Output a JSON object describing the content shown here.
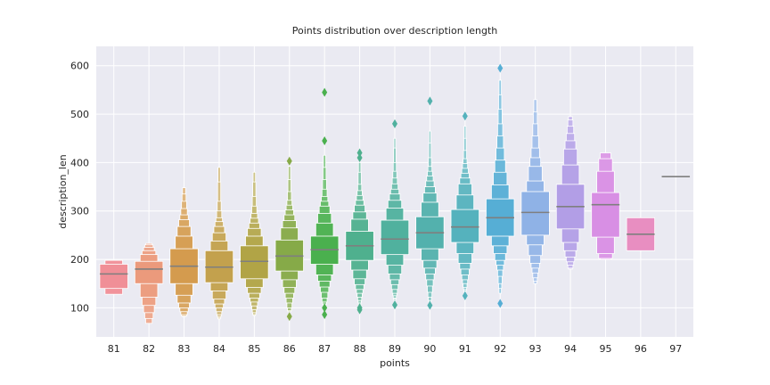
{
  "chart_data": {
    "type": "boxenplot",
    "title": "Points distribution over description length",
    "xlabel": "points",
    "ylabel": "description_len",
    "ylim": [
      40,
      640
    ],
    "yticks": [
      100,
      200,
      300,
      400,
      500,
      600
    ],
    "grid": true,
    "categories": [
      "81",
      "82",
      "83",
      "84",
      "85",
      "86",
      "87",
      "88",
      "89",
      "90",
      "91",
      "92",
      "93",
      "94",
      "95",
      "96",
      "97"
    ],
    "colors": [
      "#f08f97",
      "#eb9a7c",
      "#d49b4e",
      "#c3a14d",
      "#b1a446",
      "#86aa48",
      "#4ab04e",
      "#4fb08e",
      "#50b19e",
      "#53b1ad",
      "#55b2bd",
      "#56aed5",
      "#8fb2e6",
      "#b29ee6",
      "#d88fe4",
      "#e88ec1",
      "#ee91a8"
    ],
    "median_color": "#7f7f7f",
    "series": [
      {
        "category": "81",
        "median": 170,
        "boxes": [
          [
            140,
            190
          ],
          [
            128,
            198
          ]
        ],
        "outliers": []
      },
      {
        "category": "82",
        "median": 180,
        "boxes": [
          [
            150,
            196
          ],
          [
            122,
            210
          ],
          [
            105,
            218
          ],
          [
            90,
            225
          ],
          [
            78,
            230
          ],
          [
            68,
            233
          ]
        ],
        "outliers": []
      },
      {
        "category": "83",
        "median": 186,
        "boxes": [
          [
            150,
            222
          ],
          [
            126,
            248
          ],
          [
            110,
            268
          ],
          [
            100,
            282
          ],
          [
            92,
            292
          ],
          [
            86,
            305
          ],
          [
            83,
            320
          ],
          [
            82,
            335
          ],
          [
            82,
            348
          ]
        ],
        "outliers": []
      },
      {
        "category": "84",
        "median": 184,
        "boxes": [
          [
            152,
            218
          ],
          [
            135,
            238
          ],
          [
            118,
            255
          ],
          [
            108,
            268
          ],
          [
            100,
            278
          ],
          [
            92,
            286
          ],
          [
            86,
            300
          ],
          [
            82,
            320
          ],
          [
            79,
            360
          ],
          [
            77,
            390
          ]
        ],
        "outliers": []
      },
      {
        "category": "85",
        "median": 196,
        "boxes": [
          [
            160,
            228
          ],
          [
            142,
            248
          ],
          [
            130,
            264
          ],
          [
            120,
            275
          ],
          [
            112,
            285
          ],
          [
            104,
            295
          ],
          [
            96,
            310
          ],
          [
            90,
            330
          ],
          [
            86,
            360
          ],
          [
            84,
            380
          ]
        ],
        "outliers": []
      },
      {
        "category": "86",
        "median": 207,
        "boxes": [
          [
            176,
            240
          ],
          [
            158,
            265
          ],
          [
            142,
            280
          ],
          [
            130,
            292
          ],
          [
            120,
            302
          ],
          [
            110,
            312
          ],
          [
            100,
            322
          ],
          [
            94,
            340
          ],
          [
            92,
            365
          ],
          [
            92,
            392
          ]
        ],
        "outliers": [
          82,
          403
        ]
      },
      {
        "category": "87",
        "median": 220,
        "boxes": [
          [
            190,
            248
          ],
          [
            168,
            275
          ],
          [
            155,
            295
          ],
          [
            143,
            310
          ],
          [
            132,
            320
          ],
          [
            120,
            330
          ],
          [
            112,
            345
          ],
          [
            108,
            365
          ],
          [
            106,
            390
          ],
          [
            104,
            415
          ]
        ],
        "outliers": [
          86,
          100,
          445,
          545
        ]
      },
      {
        "category": "88",
        "median": 228,
        "boxes": [
          [
            198,
            258
          ],
          [
            178,
            283
          ],
          [
            160,
            298
          ],
          [
            148,
            312
          ],
          [
            138,
            322
          ],
          [
            130,
            332
          ],
          [
            122,
            342
          ],
          [
            115,
            355
          ],
          [
            110,
            380
          ],
          [
            105,
            400
          ]
        ],
        "outliers": [
          96,
          100,
          410,
          420
        ]
      },
      {
        "category": "89",
        "median": 242,
        "boxes": [
          [
            210,
            281
          ],
          [
            188,
            306
          ],
          [
            170,
            322
          ],
          [
            158,
            335
          ],
          [
            148,
            345
          ],
          [
            138,
            356
          ],
          [
            130,
            368
          ],
          [
            125,
            382
          ],
          [
            120,
            400
          ],
          [
            118,
            430
          ],
          [
            115,
            450
          ]
        ],
        "outliers": [
          106,
          480
        ]
      },
      {
        "category": "90",
        "median": 255,
        "boxes": [
          [
            222,
            288
          ],
          [
            198,
            318
          ],
          [
            182,
            337
          ],
          [
            170,
            350
          ],
          [
            158,
            362
          ],
          [
            145,
            372
          ],
          [
            132,
            382
          ],
          [
            122,
            392
          ],
          [
            115,
            410
          ],
          [
            112,
            440
          ],
          [
            110,
            465
          ]
        ],
        "outliers": [
          105,
          527
        ]
      },
      {
        "category": "91",
        "median": 267,
        "boxes": [
          [
            235,
            303
          ],
          [
            212,
            333
          ],
          [
            192,
            356
          ],
          [
            180,
            368
          ],
          [
            168,
            378
          ],
          [
            158,
            388
          ],
          [
            150,
            398
          ],
          [
            142,
            408
          ],
          [
            138,
            425
          ],
          [
            135,
            450
          ],
          [
            132,
            475
          ]
        ],
        "outliers": [
          125,
          496
        ]
      },
      {
        "category": "92",
        "median": 286,
        "boxes": [
          [
            248,
            325
          ],
          [
            228,
            354
          ],
          [
            212,
            380
          ],
          [
            198,
            405
          ],
          [
            188,
            430
          ],
          [
            178,
            455
          ],
          [
            165,
            480
          ],
          [
            150,
            510
          ],
          [
            140,
            540
          ],
          [
            130,
            570
          ]
        ],
        "outliers": [
          109,
          595
        ]
      },
      {
        "category": "93",
        "median": 297,
        "boxes": [
          [
            250,
            340
          ],
          [
            230,
            362
          ],
          [
            208,
            392
          ],
          [
            192,
            410
          ],
          [
            182,
            430
          ],
          [
            172,
            455
          ],
          [
            162,
            480
          ],
          [
            155,
            505
          ],
          [
            150,
            530
          ]
        ],
        "outliers": []
      },
      {
        "category": "94",
        "median": 309,
        "boxes": [
          [
            263,
            355
          ],
          [
            235,
            395
          ],
          [
            218,
            428
          ],
          [
            205,
            445
          ],
          [
            195,
            460
          ],
          [
            188,
            475
          ],
          [
            182,
            488
          ],
          [
            180,
            495
          ]
        ],
        "outliers": []
      },
      {
        "category": "95",
        "median": 313,
        "boxes": [
          [
            246,
            338
          ],
          [
            212,
            382
          ],
          [
            202,
            408
          ],
          [
            200,
            420
          ]
        ],
        "outliers": []
      },
      {
        "category": "96",
        "median": 252,
        "boxes": [
          [
            218,
            286
          ]
        ],
        "outliers": []
      },
      {
        "category": "97",
        "median": 371,
        "boxes": [],
        "outliers": []
      }
    ]
  }
}
